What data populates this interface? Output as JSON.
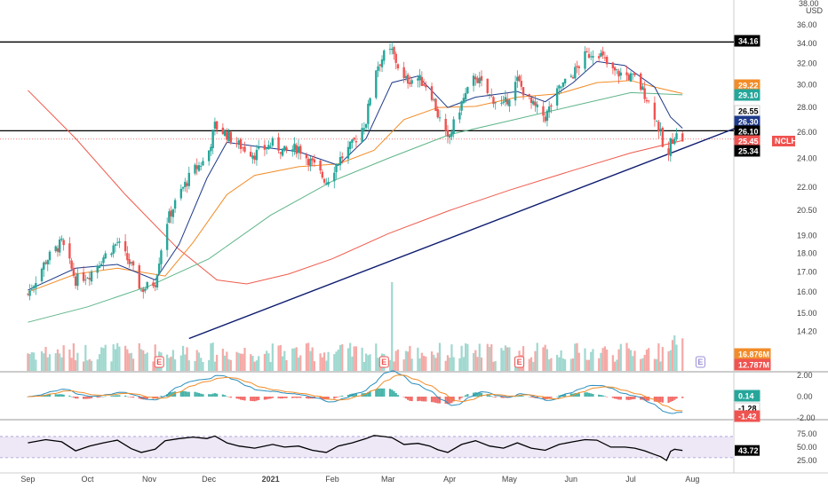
{
  "chart_data": {
    "type": "candlestick",
    "symbol": "NCLH",
    "currency": "USD",
    "colors": {
      "up": "#26a69a",
      "down": "#ef5350",
      "ma_fast": "#1e3a8a",
      "ma_mid": "#f28c28",
      "ma_slow_green": "#5fb58a",
      "ma_200": "#ef5a4c",
      "trendline": "#0d1b6e",
      "horizontal": "#000000",
      "rsi_line": "#000000",
      "rsi_band": "#ede7f6",
      "macd_signal": "#f28c28",
      "macd_line": "#2a8fbd"
    },
    "price_axis": {
      "scale": "log",
      "ticks": [
        "36.00",
        "34.00",
        "32.00",
        "30.00",
        "28.00",
        "26.00",
        "24.00",
        "22.00",
        "20.50",
        "19.00",
        "18.00",
        "17.00",
        "16.00",
        "15.00",
        "14.20"
      ],
      "top_label": "38.00",
      "unit_label": "USD"
    },
    "x_axis": {
      "tick_labels": [
        "Sep",
        "Oct",
        "Nov",
        "Dec",
        "2021",
        "Feb",
        "Mar",
        "Apr",
        "May",
        "Jun",
        "Jul",
        "Aug"
      ]
    },
    "horizontal_lines": [
      34.16,
      26.1
    ],
    "trendline": {
      "from": [
        "Nov 21",
        13.9
      ],
      "to": [
        "Jul 30",
        25.6
      ]
    },
    "price_badges": [
      {
        "text": "34.16",
        "bg": "#000000",
        "fg": "#ffffff"
      },
      {
        "text": "29.22",
        "bg": "#f28c28",
        "fg": "#ffffff"
      },
      {
        "text": "29.10",
        "bg": "#26a69a",
        "fg": "#ffffff"
      },
      {
        "text": "26.55",
        "bg": "#ffffff",
        "fg": "#000000"
      },
      {
        "text": "26.30",
        "bg": "#1e3a8a",
        "fg": "#ffffff"
      },
      {
        "text": "26.10",
        "bg": "#000000",
        "fg": "#ffffff"
      },
      {
        "text": "25.45",
        "bg": "#ef5350",
        "fg": "#ffffff"
      },
      {
        "text": "25.34",
        "bg": "#000000",
        "fg": "#ffffff"
      }
    ],
    "symbol_badge": {
      "text": "NCLH",
      "bg": "#ef5350",
      "fg": "#ffffff"
    },
    "close_path": [
      [
        "Sep 1",
        15.9
      ],
      [
        "Sep 10",
        17.6
      ],
      [
        "Sep 18",
        18.6
      ],
      [
        "Sep 25",
        16.6
      ],
      [
        "Oct 2",
        16.9
      ],
      [
        "Oct 9",
        17.8
      ],
      [
        "Oct 16",
        18.6
      ],
      [
        "Oct 23",
        17.3
      ],
      [
        "Oct 28",
        16.1
      ],
      [
        "Nov 4",
        16.5
      ],
      [
        "Nov 9",
        19.6
      ],
      [
        "Nov 16",
        21.5
      ],
      [
        "Nov 23",
        23.1
      ],
      [
        "Nov 30",
        24.0
      ],
      [
        "Dec 4",
        26.5
      ],
      [
        "Dec 10",
        25.8
      ],
      [
        "Dec 16",
        25.0
      ],
      [
        "Dec 24",
        24.3
      ],
      [
        "Jan 2",
        25.1
      ],
      [
        "Jan 8",
        24.5
      ],
      [
        "Jan 15",
        24.8
      ],
      [
        "Jan 22",
        23.6
      ],
      [
        "Jan 29",
        22.4
      ],
      [
        "Feb 4",
        23.8
      ],
      [
        "Feb 11",
        25.0
      ],
      [
        "Feb 18",
        26.9
      ],
      [
        "Feb 22",
        31.3
      ],
      [
        "Feb 27",
        32.8
      ],
      [
        "Mar 3",
        33.2
      ],
      [
        "Mar 9",
        30.4
      ],
      [
        "Mar 16",
        30.6
      ],
      [
        "Mar 22",
        29.7
      ],
      [
        "Mar 26",
        27.4
      ],
      [
        "Mar 31",
        25.3
      ],
      [
        "Apr 7",
        28.4
      ],
      [
        "Apr 14",
        30.8
      ],
      [
        "Apr 21",
        29.0
      ],
      [
        "Apr 28",
        28.1
      ],
      [
        "May 5",
        30.4
      ],
      [
        "May 12",
        28.3
      ],
      [
        "May 19",
        27.2
      ],
      [
        "May 26",
        29.6
      ],
      [
        "Jun 2",
        31.0
      ],
      [
        "Jun 8",
        32.7
      ],
      [
        "Jun 14",
        33.4
      ],
      [
        "Jun 21",
        31.3
      ],
      [
        "Jun 28",
        30.9
      ],
      [
        "Jul 3",
        30.6
      ],
      [
        "Jul 8",
        29.2
      ],
      [
        "Jul 13",
        27.4
      ],
      [
        "Jul 16",
        25.8
      ],
      [
        "Jul 19",
        23.1
      ],
      [
        "Jul 21",
        25.2
      ],
      [
        "Jul 23",
        25.8
      ],
      [
        "Jul 27",
        25.45
      ]
    ],
    "moving_averages": {
      "fast": [
        [
          "Sep 1",
          16.1
        ],
        [
          "Sep 25",
          17.2
        ],
        [
          "Oct 16",
          17.4
        ],
        [
          "Nov 4",
          16.6
        ],
        [
          "Nov 16",
          18.5
        ],
        [
          "Nov 30",
          22.6
        ],
        [
          "Dec 10",
          25.2
        ],
        [
          "Dec 24",
          24.9
        ],
        [
          "Jan 15",
          24.5
        ],
        [
          "Feb 4",
          23.5
        ],
        [
          "Feb 18",
          25.5
        ],
        [
          "Mar 3",
          30.2
        ],
        [
          "Mar 16",
          30.8
        ],
        [
          "Mar 31",
          28.0
        ],
        [
          "Apr 14",
          28.9
        ],
        [
          "May 5",
          29.4
        ],
        [
          "May 19",
          28.5
        ],
        [
          "Jun 2",
          30.2
        ],
        [
          "Jun 14",
          32.2
        ],
        [
          "Jun 28",
          31.8
        ],
        [
          "Jul 13",
          29.8
        ],
        [
          "Jul 21",
          27.2
        ],
        [
          "Jul 27",
          26.3
        ]
      ],
      "mid": [
        [
          "Sep 1",
          16.0
        ],
        [
          "Sep 25",
          16.9
        ],
        [
          "Oct 16",
          17.2
        ],
        [
          "Nov 9",
          16.8
        ],
        [
          "Nov 23",
          18.6
        ],
        [
          "Dec 10",
          21.5
        ],
        [
          "Dec 24",
          22.8
        ],
        [
          "Jan 15",
          23.4
        ],
        [
          "Feb 4",
          23.6
        ],
        [
          "Feb 22",
          24.6
        ],
        [
          "Mar 9",
          27.0
        ],
        [
          "Mar 26",
          28.0
        ],
        [
          "Apr 14",
          28.1
        ],
        [
          "May 5",
          28.9
        ],
        [
          "May 26",
          29.2
        ],
        [
          "Jun 14",
          30.2
        ],
        [
          "Jul 1",
          30.4
        ],
        [
          "Jul 13",
          29.8
        ],
        [
          "Jul 27",
          29.22
        ]
      ],
      "green": [
        [
          "Sep 1",
          14.6
        ],
        [
          "Oct 1",
          15.3
        ],
        [
          "Nov 1",
          16.3
        ],
        [
          "Dec 1",
          17.7
        ],
        [
          "Jan 1",
          20.2
        ],
        [
          "Feb 1",
          22.4
        ],
        [
          "Mar 1",
          24.0
        ],
        [
          "Apr 1",
          25.8
        ],
        [
          "May 1",
          26.9
        ],
        [
          "Jun 1",
          28.1
        ],
        [
          "Jul 1",
          29.3
        ],
        [
          "Jul 27",
          29.1
        ]
      ],
      "ma200": [
        [
          "Sep 1",
          29.5
        ],
        [
          "Sep 25",
          25.5
        ],
        [
          "Oct 20",
          21.5
        ],
        [
          "Nov 15",
          18.3
        ],
        [
          "Dec 5",
          16.6
        ],
        [
          "Dec 20",
          16.4
        ],
        [
          "Jan 10",
          16.9
        ],
        [
          "Feb 1",
          17.7
        ],
        [
          "Mar 1",
          19.1
        ],
        [
          "Apr 1",
          20.5
        ],
        [
          "May 1",
          21.8
        ],
        [
          "Jun 1",
          23.1
        ],
        [
          "Jul 1",
          24.4
        ],
        [
          "Jul 27",
          25.34
        ]
      ]
    },
    "volume_badges": [
      {
        "text": "16.876M",
        "bg": "#f28c28",
        "fg": "#ffffff"
      },
      {
        "text": "12.787M",
        "bg": "#ef5350",
        "fg": "#ffffff"
      }
    ],
    "volume_spike": {
      "date": "Mar 3",
      "value": "large"
    },
    "macd": {
      "axis_ticks": [
        "2.00",
        "0.00",
        "-2.00"
      ],
      "badges": [
        {
          "text": "0.14",
          "bg": "#26a69a",
          "fg": "#ffffff"
        },
        {
          "text": "-1.28",
          "bg": "#ffffff",
          "fg": "#000000"
        },
        {
          "text": "-1.42",
          "bg": "#ef5350",
          "fg": "#ffffff"
        }
      ]
    },
    "rsi": {
      "axis_ticks": [
        "75.00",
        "50.00",
        "25.00"
      ],
      "band": [
        30,
        70
      ],
      "value_badge": {
        "text": "43.72",
        "bg": "#000000",
        "fg": "#ffffff"
      },
      "series": [
        [
          "Sep 1",
          58
        ],
        [
          "Sep 10",
          64
        ],
        [
          "Sep 18",
          60
        ],
        [
          "Sep 25",
          43
        ],
        [
          "Oct 2",
          52
        ],
        [
          "Oct 9",
          58
        ],
        [
          "Oct 16",
          63
        ],
        [
          "Oct 23",
          47
        ],
        [
          "Oct 28",
          40
        ],
        [
          "Nov 4",
          46
        ],
        [
          "Nov 9",
          62
        ],
        [
          "Nov 16",
          66
        ],
        [
          "Nov 23",
          69
        ],
        [
          "Nov 30",
          66
        ],
        [
          "Dec 4",
          71
        ],
        [
          "Dec 10",
          58
        ],
        [
          "Dec 16",
          52
        ],
        [
          "Dec 24",
          48
        ],
        [
          "Jan 2",
          55
        ],
        [
          "Jan 8",
          50
        ],
        [
          "Jan 15",
          52
        ],
        [
          "Jan 22",
          44
        ],
        [
          "Jan 29",
          40
        ],
        [
          "Feb 4",
          52
        ],
        [
          "Feb 11",
          58
        ],
        [
          "Feb 18",
          66
        ],
        [
          "Feb 22",
          72
        ],
        [
          "Feb 27",
          70
        ],
        [
          "Mar 3",
          68
        ],
        [
          "Mar 9",
          55
        ],
        [
          "Mar 16",
          57
        ],
        [
          "Mar 22",
          52
        ],
        [
          "Mar 26",
          45
        ],
        [
          "Mar 31",
          40
        ],
        [
          "Apr 7",
          55
        ],
        [
          "Apr 14",
          62
        ],
        [
          "Apr 21",
          52
        ],
        [
          "Apr 28",
          48
        ],
        [
          "May 5",
          58
        ],
        [
          "May 12",
          48
        ],
        [
          "May 19",
          44
        ],
        [
          "May 26",
          55
        ],
        [
          "Jun 2",
          60
        ],
        [
          "Jun 8",
          64
        ],
        [
          "Jun 14",
          63
        ],
        [
          "Jun 21",
          50
        ],
        [
          "Jun 28",
          50
        ],
        [
          "Jul 3",
          48
        ],
        [
          "Jul 8",
          43
        ],
        [
          "Jul 13",
          36
        ],
        [
          "Jul 16",
          32
        ],
        [
          "Jul 19",
          25
        ],
        [
          "Jul 21",
          42
        ],
        [
          "Jul 23",
          46
        ],
        [
          "Jul 27",
          43.72
        ]
      ]
    },
    "earnings_markers": [
      {
        "date": "Nov 6"
      },
      {
        "date": "Feb 27"
      },
      {
        "date": "May 6"
      },
      {
        "date": "Aug 5",
        "future": true
      }
    ],
    "e_label": "E"
  }
}
